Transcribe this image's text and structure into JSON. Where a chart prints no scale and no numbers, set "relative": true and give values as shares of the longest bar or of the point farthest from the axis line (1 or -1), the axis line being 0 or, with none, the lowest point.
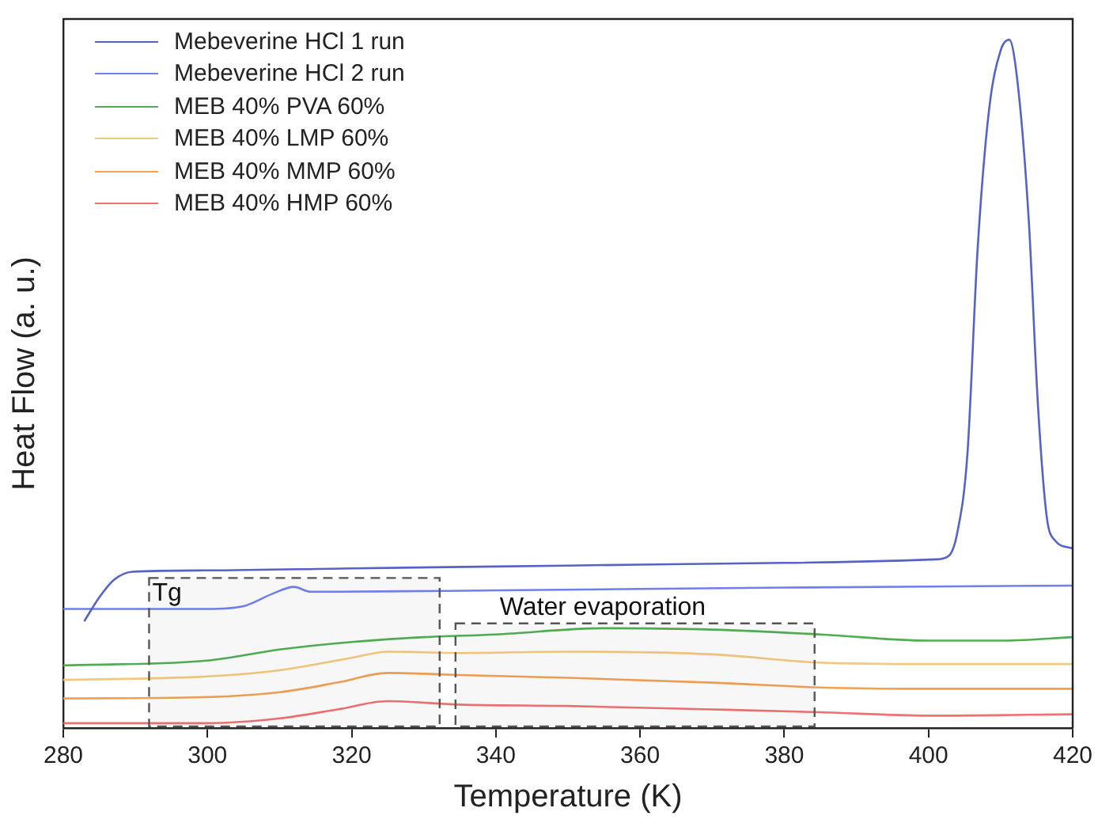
{
  "chart_data": {
    "type": "line",
    "xlabel": "Temperature (K)",
    "ylabel": "Heat Flow (a. u.)",
    "relative": true,
    "legend": "top left",
    "marker": "none",
    "xlim": [
      280,
      420
    ],
    "xticks": [
      280,
      300,
      320,
      340,
      360,
      380,
      400,
      420
    ],
    "series": [
      {
        "name": "Mebeverine HCl 1 run",
        "color": "#5563c4",
        "x": [
          282.9,
          285,
          287,
          289.6,
          300,
          320,
          350,
          380,
          401,
          402.8,
          404,
          405.4,
          406.8,
          408.4,
          410,
          411.2,
          412.3,
          413.9,
          415.2,
          416.4,
          417.5,
          420
        ],
        "values": [
          0.155,
          0.19,
          0.215,
          0.227,
          0.229,
          0.232,
          0.236,
          0.24,
          0.245,
          0.25,
          0.284,
          0.398,
          0.693,
          0.898,
          0.984,
          1,
          0.943,
          0.739,
          0.466,
          0.307,
          0.273,
          0.261
        ]
      },
      {
        "name": "Mebeverine HCl 2 run",
        "color": "#6f7ff0",
        "x": [
          280,
          300,
          305,
          309,
          312,
          314.3,
          318,
          340,
          380,
          420
        ],
        "values": [
          0.173,
          0.173,
          0.177,
          0.195,
          0.205,
          0.198,
          0.198,
          0.2,
          0.204,
          0.207
        ]
      },
      {
        "name": "MEB 40% PVA 60%",
        "color": "#4caf50",
        "x": [
          280,
          300,
          310,
          320,
          330,
          340,
          355,
          370,
          385,
          400,
          410,
          420
        ],
        "values": [
          0.091,
          0.098,
          0.114,
          0.125,
          0.132,
          0.136,
          0.145,
          0.143,
          0.136,
          0.127,
          0.127,
          0.132
        ]
      },
      {
        "name": "MEB 40% LMP 60%",
        "color": "#f5c97a",
        "x": [
          280,
          300,
          310,
          320,
          325,
          335,
          350,
          370,
          385,
          400,
          420
        ],
        "values": [
          0.07,
          0.075,
          0.084,
          0.102,
          0.111,
          0.109,
          0.111,
          0.107,
          0.095,
          0.093,
          0.093
        ]
      },
      {
        "name": "MEB 40% MMP 60%",
        "color": "#f5a050",
        "x": [
          280,
          300,
          310,
          318,
          325,
          335,
          350,
          370,
          385,
          400,
          420
        ],
        "values": [
          0.043,
          0.045,
          0.052,
          0.066,
          0.08,
          0.077,
          0.073,
          0.066,
          0.059,
          0.057,
          0.057
        ]
      },
      {
        "name": "MEB 40% HMP 60%",
        "color": "#f07070",
        "x": [
          280,
          300,
          310,
          318,
          325,
          335,
          350,
          370,
          385,
          400,
          420
        ],
        "values": [
          0.007,
          0.007,
          0.014,
          0.027,
          0.039,
          0.034,
          0.032,
          0.027,
          0.023,
          0.018,
          0.02
        ]
      }
    ],
    "bands": [
      {
        "axis": "x",
        "from": 291.9,
        "to": 332.2,
        "label": "Tg"
      },
      {
        "axis": "x",
        "from": 334.4,
        "to": 384.2,
        "label": "Water evaporation"
      }
    ]
  }
}
